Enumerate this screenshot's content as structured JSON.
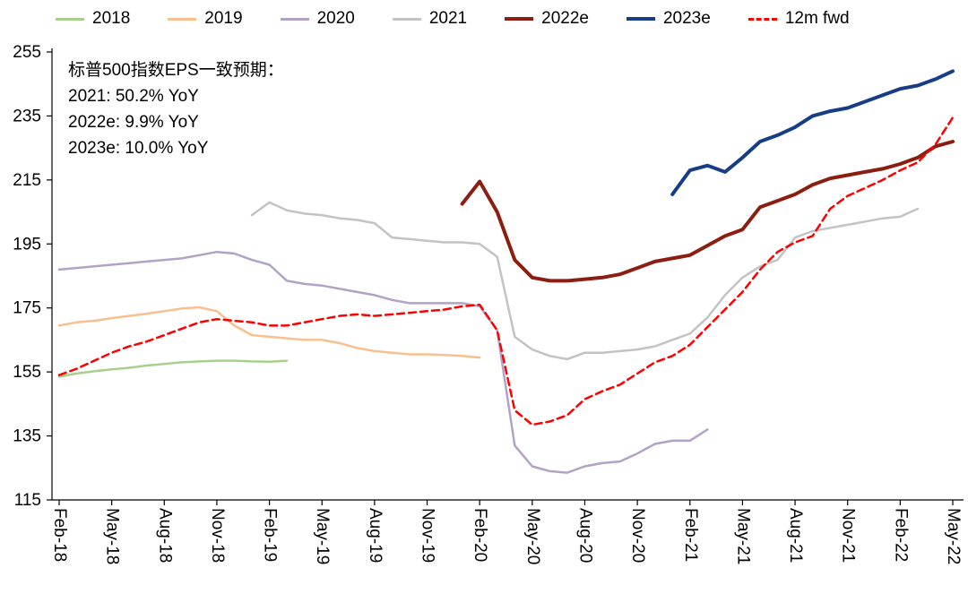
{
  "legend": {
    "items": [
      {
        "label": "2018",
        "color": "#a8d08d",
        "dash": false,
        "thick": false
      },
      {
        "label": "2019",
        "color": "#f8c08e",
        "dash": false,
        "thick": false
      },
      {
        "label": "2020",
        "color": "#b2a2c8",
        "dash": false,
        "thick": false
      },
      {
        "label": "2021",
        "color": "#c3c3c3",
        "dash": false,
        "thick": false
      },
      {
        "label": "2022e",
        "color": "#8b1e10",
        "dash": false,
        "thick": true
      },
      {
        "label": "2023e",
        "color": "#163d85",
        "dash": false,
        "thick": true
      },
      {
        "label": "12m fwd",
        "color": "#ff0000",
        "dash": true,
        "thick": false
      }
    ]
  },
  "annotation": {
    "lines": [
      "标普500指数EPS一致预期：",
      "2021: 50.2% YoY",
      "2022e: 9.9% YoY",
      "2023e: 10.0% YoY"
    ]
  },
  "chart_data": {
    "type": "line",
    "title": "标普500指数EPS一致预期",
    "xlabel": "",
    "ylabel": "",
    "ylim": [
      115,
      255
    ],
    "y_ticks": [
      115,
      135,
      155,
      175,
      195,
      215,
      235,
      255
    ],
    "grid": false,
    "legend_position": "top",
    "x_unit": "month",
    "x_months_total": 51,
    "x_tick_interval_months": 3,
    "x_tick_labels": [
      "Feb-18",
      "May-18",
      "Aug-18",
      "Nov-18",
      "Feb-19",
      "May-19",
      "Aug-19",
      "Nov-19",
      "Feb-20",
      "May-20",
      "Aug-20",
      "Nov-20",
      "Feb-21",
      "May-21",
      "Aug-21",
      "Nov-21",
      "Feb-22",
      "May-22"
    ],
    "series": [
      {
        "name": "2018",
        "color": "#a8d08d",
        "dash": false,
        "line_width": 2.5,
        "start_month_index": 0,
        "values": [
          153.5,
          154.5,
          155.2,
          155.8,
          156.3,
          157.0,
          157.5,
          158.0,
          158.3,
          158.5,
          158.5,
          158.3,
          158.2,
          158.5
        ]
      },
      {
        "name": "2019",
        "color": "#f8c08e",
        "dash": false,
        "line_width": 2.5,
        "start_month_index": 0,
        "values": [
          169.5,
          170.5,
          171.0,
          171.8,
          172.5,
          173.2,
          174.0,
          174.8,
          175.2,
          174.0,
          169.5,
          166.5,
          166.0,
          165.5,
          165.0,
          165.0,
          164.0,
          162.5,
          161.5,
          161.0,
          160.5,
          160.5,
          160.3,
          160.0,
          159.5
        ]
      },
      {
        "name": "2020",
        "color": "#b2a2c8",
        "dash": false,
        "line_width": 2.5,
        "start_month_index": 0,
        "values": [
          187.0,
          187.5,
          188.0,
          188.5,
          189.0,
          189.5,
          190.0,
          190.5,
          191.5,
          192.5,
          192.0,
          190.0,
          188.5,
          183.5,
          182.5,
          182.0,
          181.0,
          180.0,
          179.0,
          177.5,
          176.5,
          176.5,
          176.5,
          176.5,
          175.5,
          168.0,
          132.0,
          125.5,
          124.0,
          123.5,
          125.5,
          126.5,
          127.0,
          129.5,
          132.5,
          133.5,
          133.5,
          137.0
        ]
      },
      {
        "name": "2021",
        "color": "#c3c3c3",
        "dash": false,
        "line_width": 2.5,
        "start_month_index": 11,
        "values": [
          204.0,
          208.0,
          205.5,
          204.5,
          204.0,
          203.0,
          202.5,
          201.5,
          197.0,
          196.5,
          196.0,
          195.5,
          195.5,
          195.0,
          191.0,
          166.0,
          162.0,
          160.0,
          159.0,
          161.0,
          161.0,
          161.5,
          162.0,
          163.0,
          165.0,
          167.0,
          172.0,
          179.0,
          184.5,
          188.0,
          190.0,
          197.0,
          199.0,
          200.0,
          201.0,
          202.0,
          203.0,
          203.5,
          206.0
        ]
      },
      {
        "name": "2022e",
        "color": "#8b1e10",
        "dash": false,
        "line_width": 4,
        "start_month_index": 23,
        "values": [
          207.5,
          214.5,
          205.0,
          190.0,
          184.5,
          183.5,
          183.5,
          184.0,
          184.5,
          185.5,
          187.5,
          189.5,
          190.5,
          191.5,
          194.5,
          197.5,
          199.5,
          206.5,
          208.5,
          210.5,
          213.5,
          215.5,
          216.5,
          217.5,
          218.5,
          220.0,
          222.0,
          225.5,
          227.0
        ]
      },
      {
        "name": "2023e",
        "color": "#163d85",
        "dash": false,
        "line_width": 4,
        "start_month_index": 35,
        "values": [
          210.5,
          218.0,
          219.5,
          217.5,
          222.0,
          227.0,
          229.0,
          231.5,
          235.0,
          236.5,
          237.5,
          239.5,
          241.5,
          243.5,
          244.5,
          246.5,
          249.0
        ]
      },
      {
        "name": "12m fwd",
        "color": "#ff0000",
        "dash": true,
        "line_width": 2.5,
        "start_month_index": 0,
        "values": [
          154,
          156,
          158.5,
          161,
          163,
          164.5,
          166.5,
          168.5,
          170.5,
          171.5,
          171,
          170.5,
          169.5,
          169.5,
          170.5,
          171.5,
          172.5,
          173,
          172.5,
          173,
          173.5,
          174,
          174.5,
          175.5,
          176,
          168,
          143,
          138.5,
          139.5,
          141.5,
          146.5,
          149,
          151,
          154.5,
          158,
          160,
          163.5,
          169,
          174.5,
          180,
          187,
          192.5,
          195.5,
          197.5,
          206,
          210,
          212.5,
          215,
          218,
          220.5,
          226,
          234.5
        ]
      }
    ]
  }
}
